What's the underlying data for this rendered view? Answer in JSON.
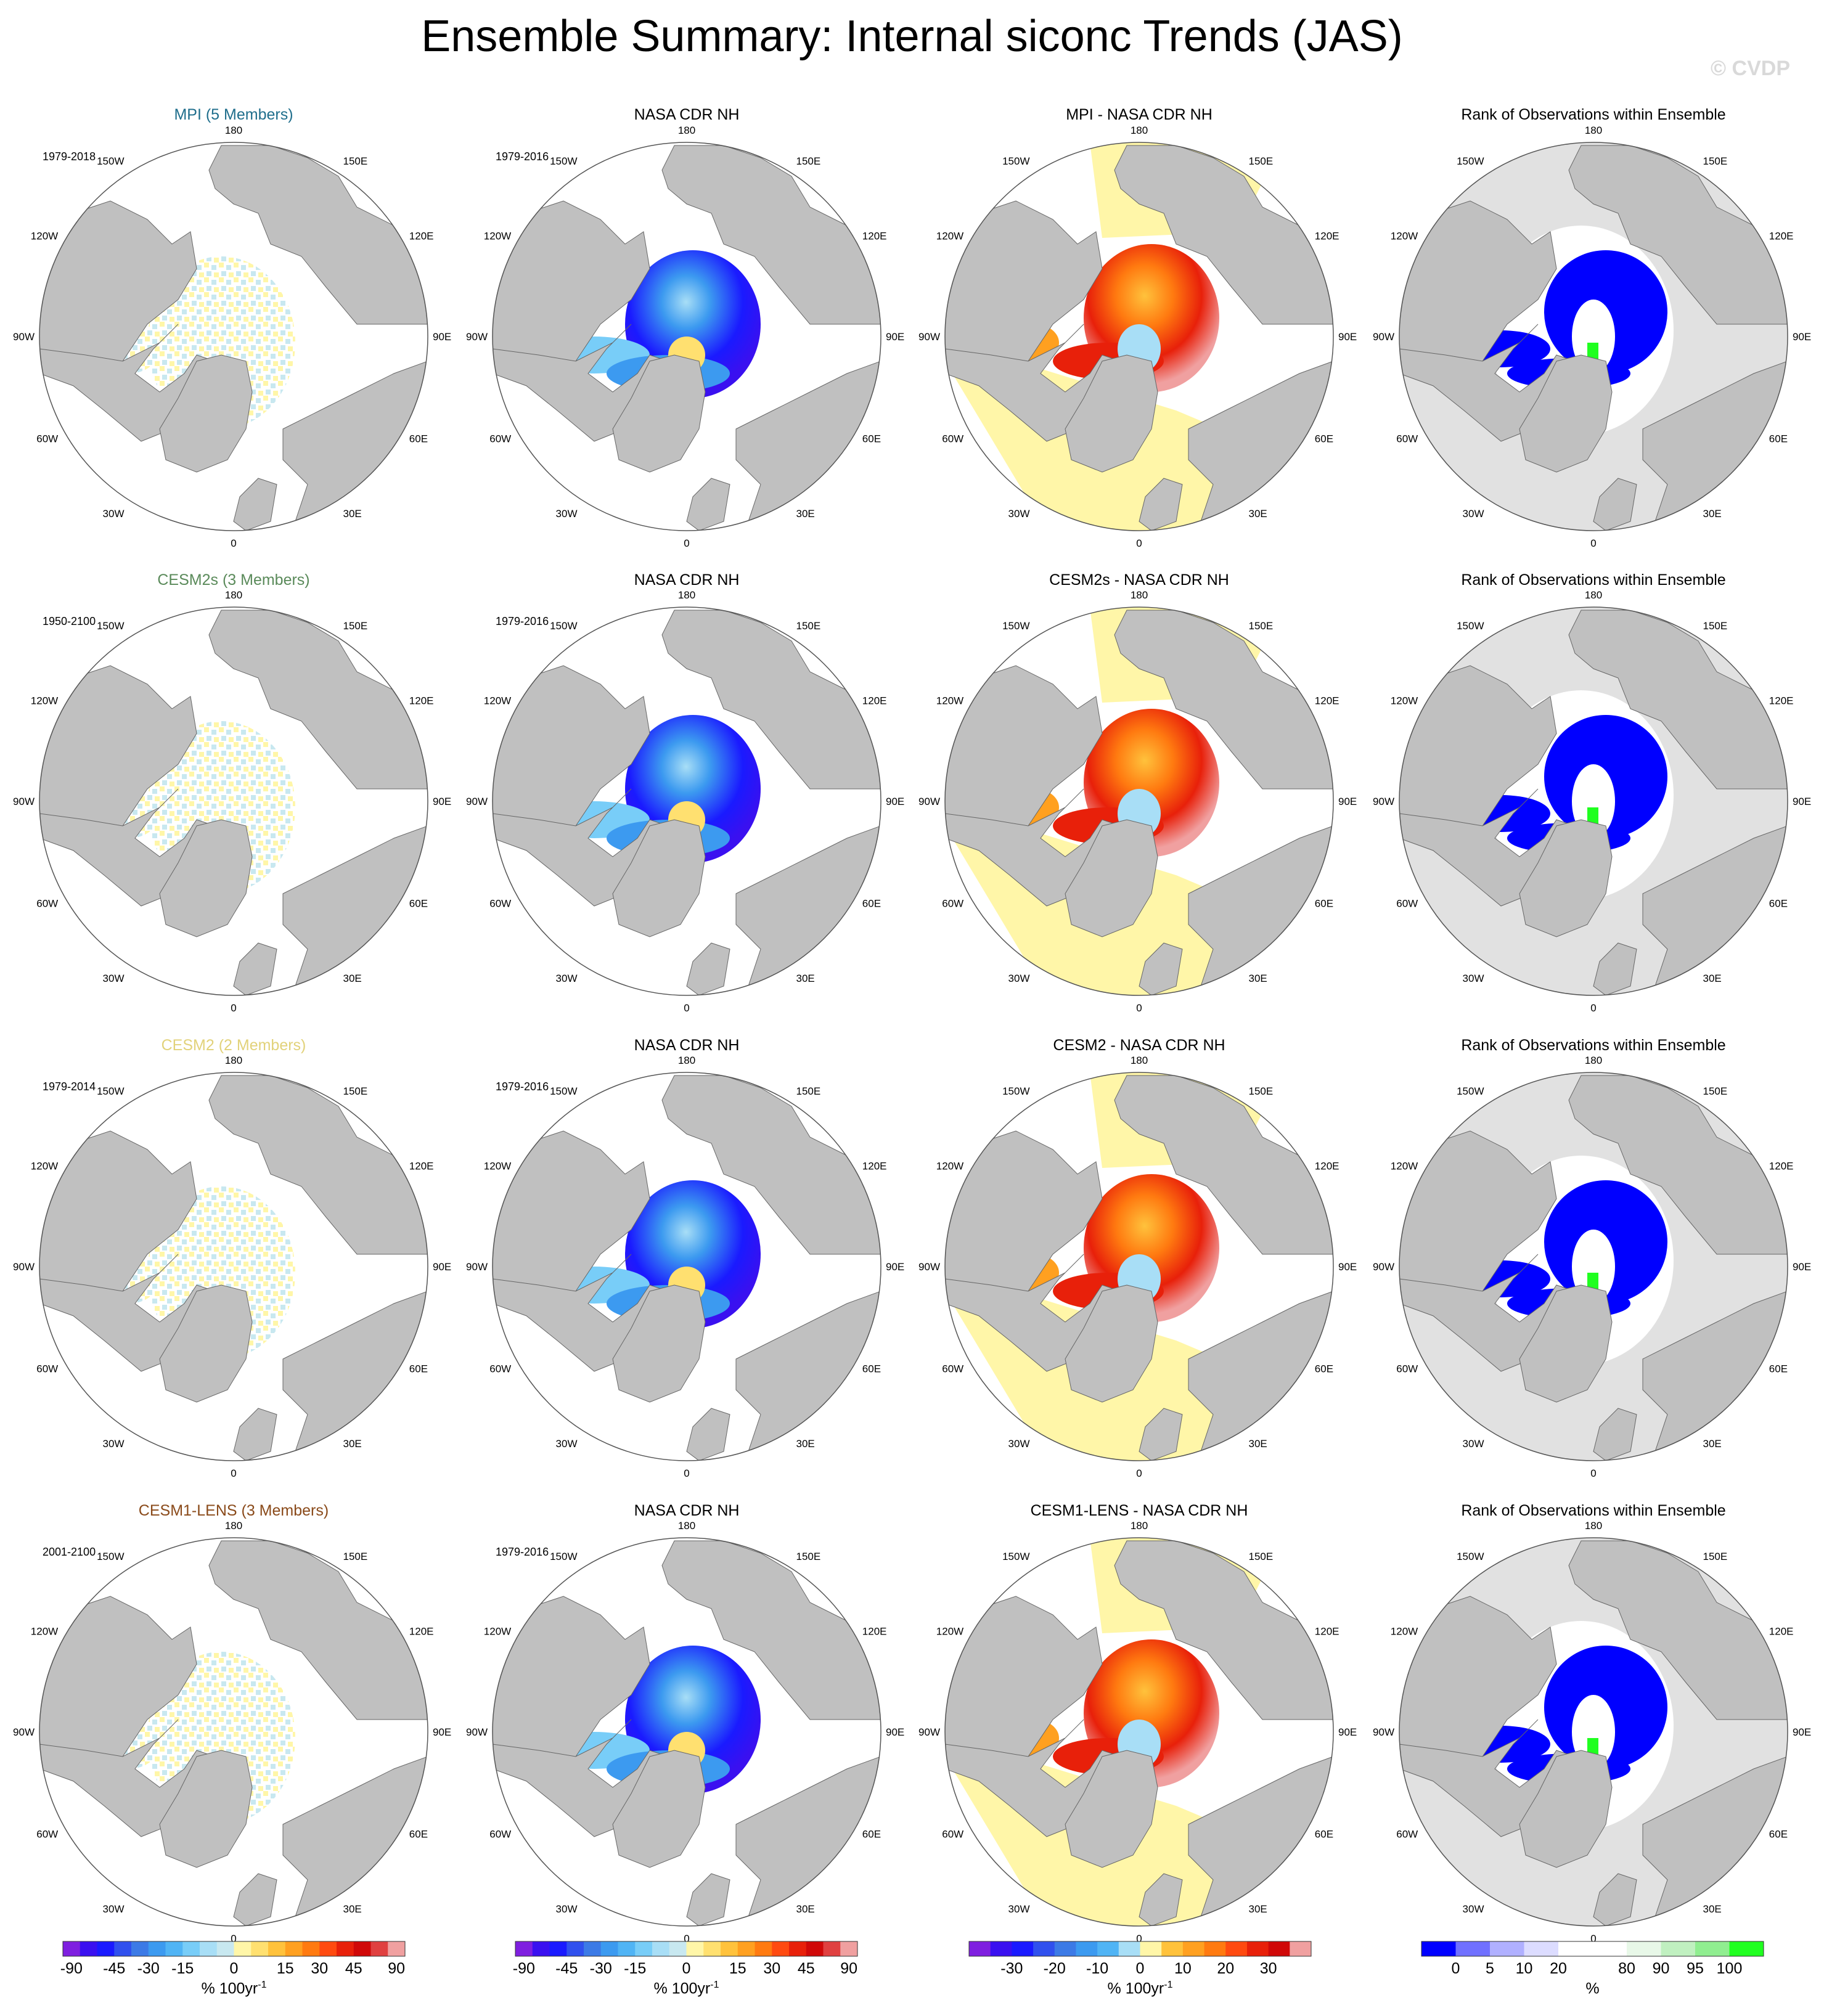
{
  "figure": {
    "title": "Ensemble Summary: Internal siconc Trends (JAS)",
    "watermark": "© CVDP"
  },
  "rows": [
    {
      "model_title": "MPI (5 Members)",
      "model_title_color": "#1f6e8c",
      "model_period": "1979-2018",
      "obs_title": "NASA CDR NH",
      "obs_period": "1979-2016",
      "diff_title": "MPI - NASA CDR NH",
      "rank_title": "Rank of Observations within Ensemble"
    },
    {
      "model_title": "CESM2s (3 Members)",
      "model_title_color": "#5a8a5a",
      "model_period": "1950-2100",
      "obs_title": "NASA CDR NH",
      "obs_period": "1979-2016",
      "diff_title": "CESM2s - NASA CDR NH",
      "rank_title": "Rank of Observations within Ensemble"
    },
    {
      "model_title": "CESM2 (2 Members)",
      "model_title_color": "#e2d27a",
      "model_period": "1979-2014",
      "obs_title": "NASA CDR NH",
      "obs_period": "1979-2016",
      "diff_title": "CESM2 - NASA CDR NH",
      "rank_title": "Rank of Observations within Ensemble"
    },
    {
      "model_title": "CESM1-LENS (3 Members)",
      "model_title_color": "#8a4a1a",
      "model_period": "2001-2100",
      "obs_title": "NASA CDR NH",
      "obs_period": "1979-2016",
      "diff_title": "CESM1-LENS - NASA CDR NH",
      "rank_title": "Rank of Observations within Ensemble"
    }
  ],
  "map_labels": {
    "top": "180",
    "bottom": "0",
    "left_mid": "90W",
    "right_mid": "90E",
    "upper_left": "150W",
    "upper_right": "150E",
    "left_upper": "120W",
    "right_upper": "120E",
    "left_lower": "60W",
    "right_lower": "60E",
    "lower_left": "30W",
    "lower_right": "30E"
  },
  "colorbars": [
    {
      "colors": [
        "#7f1fe0",
        "#3a10f0",
        "#1a1aff",
        "#3050ee",
        "#3c7ae6",
        "#3c9af0",
        "#50b4f5",
        "#78cdf8",
        "#a8def6",
        "#c8e8f0",
        "#fff6a8",
        "#ffe070",
        "#ffc23c",
        "#ffa020",
        "#ff7a10",
        "#ff4a10",
        "#e8200a",
        "#d00808",
        "#e04040",
        "#f0a0a0"
      ],
      "ticks": [
        "-90",
        "-45",
        "-30",
        "-15",
        "0",
        "15",
        "30",
        "45",
        "90"
      ],
      "tick_positions": [
        0.025,
        0.15,
        0.25,
        0.35,
        0.5,
        0.65,
        0.75,
        0.85,
        0.975
      ],
      "label": "% 100yr",
      "label_sup": "-1"
    },
    {
      "colors": [
        "#7f1fe0",
        "#3a10f0",
        "#1a1aff",
        "#3050ee",
        "#3c7ae6",
        "#3c9af0",
        "#50b4f5",
        "#78cdf8",
        "#a8def6",
        "#c8e8f0",
        "#fff6a8",
        "#ffe070",
        "#ffc23c",
        "#ffa020",
        "#ff7a10",
        "#ff4a10",
        "#e8200a",
        "#d00808",
        "#e04040",
        "#f0a0a0"
      ],
      "ticks": [
        "-90",
        "-45",
        "-30",
        "-15",
        "0",
        "15",
        "30",
        "45",
        "90"
      ],
      "tick_positions": [
        0.025,
        0.15,
        0.25,
        0.35,
        0.5,
        0.65,
        0.75,
        0.85,
        0.975
      ],
      "label": "% 100yr",
      "label_sup": "-1"
    },
    {
      "colors": [
        "#7f1fe0",
        "#3a10f0",
        "#1a1aff",
        "#3050ee",
        "#3c7ae6",
        "#3c9af0",
        "#50b4f5",
        "#a8def6",
        "#fff6a8",
        "#ffc23c",
        "#ffa020",
        "#ff7a10",
        "#ff4a10",
        "#e8200a",
        "#d00808",
        "#f0a0a0"
      ],
      "ticks": [
        "-30",
        "-20",
        "-10",
        "0",
        "10",
        "20",
        "30"
      ],
      "tick_positions": [
        0.125,
        0.25,
        0.375,
        0.5,
        0.625,
        0.75,
        0.875
      ],
      "label": "% 100yr",
      "label_sup": "-1"
    },
    {
      "colors": [
        "#0000ff",
        "#7070ff",
        "#b0b0ff",
        "#dcdcff",
        "#ffffff",
        "#ffffff",
        "#e8f8e8",
        "#c0f0c0",
        "#90ee90",
        "#20ff20"
      ],
      "ticks": [
        "0",
        "5",
        "10",
        "20",
        "80",
        "90",
        "95",
        "100"
      ],
      "tick_positions": [
        0.1,
        0.2,
        0.3,
        0.4,
        0.6,
        0.7,
        0.8,
        0.9
      ],
      "label": "%",
      "label_sup": ""
    }
  ]
}
